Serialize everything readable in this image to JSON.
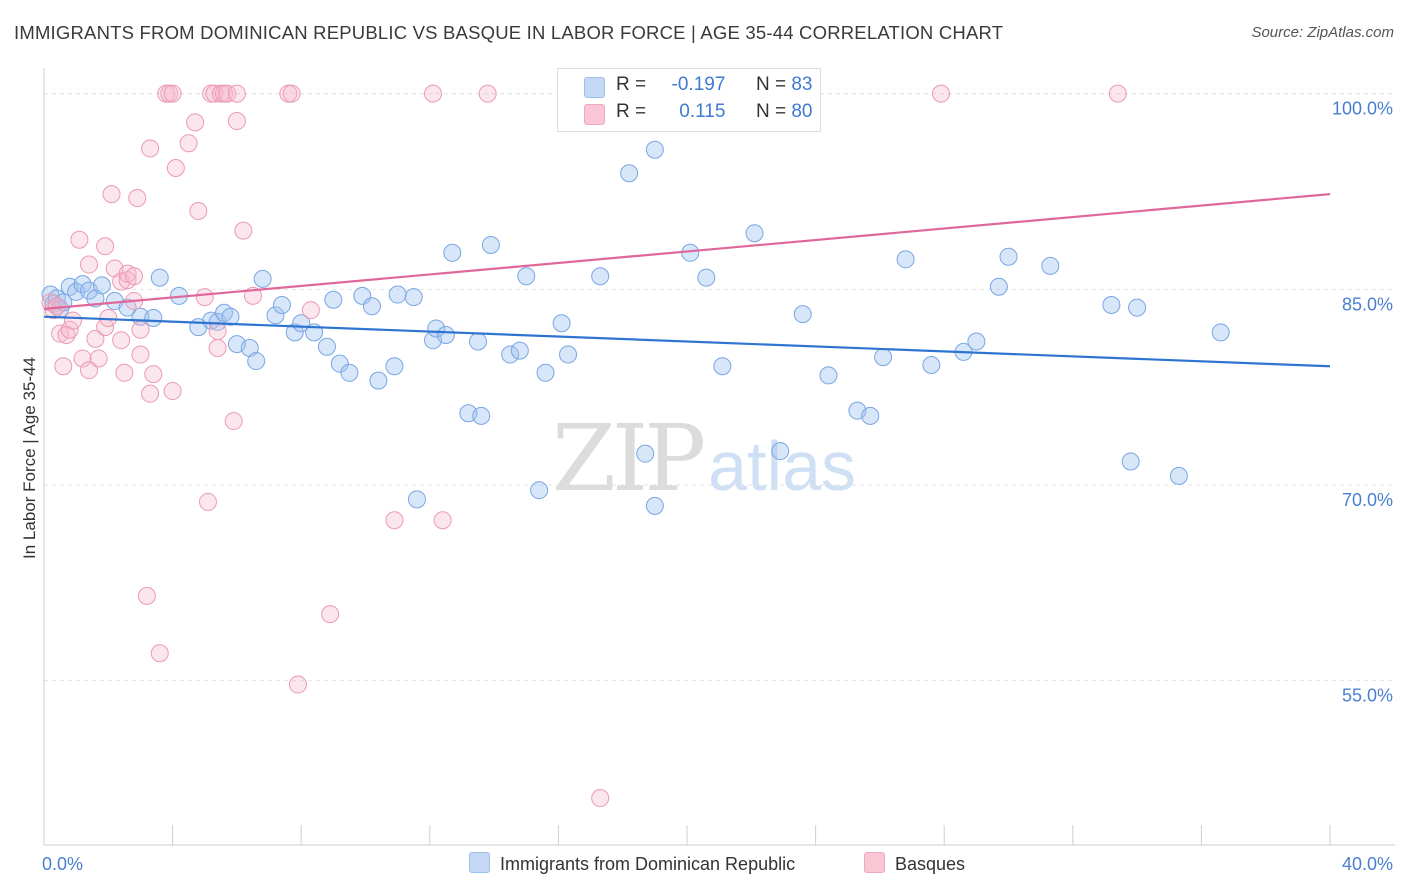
{
  "header": {
    "title": "IMMIGRANTS FROM DOMINICAN REPUBLIC VS BASQUE IN LABOR FORCE | AGE 35-44 CORRELATION CHART",
    "source": "Source: ZipAtlas.com"
  },
  "watermark": {
    "zip": "ZIP",
    "atlas": "atlas"
  },
  "legend": {
    "r_label": "R =",
    "n_label": "N =",
    "series": [
      {
        "name": "Immigrants from Dominican Republic",
        "r": "-0.197",
        "n": "83",
        "color": "#9dbff0",
        "fill": "#c4d8f6"
      },
      {
        "name": "Basques",
        "r": "0.115",
        "n": "80",
        "color": "#f0a8be",
        "fill": "#f8c6d4"
      }
    ]
  },
  "chart_data": {
    "type": "scatter",
    "title": "IMMIGRANTS FROM DOMINICAN REPUBLIC VS BASQUE IN LABOR FORCE | AGE 35-44 CORRELATION CHART",
    "ylabel": "In Labor Force | Age 35-44",
    "xlabel": "",
    "xlim": [
      0,
      40
    ],
    "ylim": [
      42.4,
      101.2
    ],
    "x_tick_labels": [
      "0.0%",
      "40.0%"
    ],
    "y_ticks": [
      55,
      70,
      85,
      100
    ],
    "y_tick_labels": [
      "55.0%",
      "70.0%",
      "85.0%",
      "100.0%"
    ],
    "grid": true,
    "legend_position": "top-center",
    "series": [
      {
        "name": "Immigrants from Dominican Republic",
        "color": "#5b8fd9",
        "points": [
          [
            0.2,
            84.6
          ],
          [
            0.3,
            83.9
          ],
          [
            0.4,
            84.3
          ],
          [
            0.5,
            83.5
          ],
          [
            0.6,
            84.0
          ],
          [
            0.8,
            85.2
          ],
          [
            1.0,
            84.8
          ],
          [
            1.2,
            85.4
          ],
          [
            1.4,
            84.9
          ],
          [
            1.6,
            84.3
          ],
          [
            1.8,
            85.3
          ],
          [
            2.2,
            84.1
          ],
          [
            2.6,
            83.6
          ],
          [
            3.0,
            82.9
          ],
          [
            3.4,
            82.8
          ],
          [
            3.6,
            85.9
          ],
          [
            4.2,
            84.5
          ],
          [
            4.8,
            82.1
          ],
          [
            5.2,
            82.6
          ],
          [
            5.4,
            82.5
          ],
          [
            5.6,
            83.2
          ],
          [
            5.8,
            82.9
          ],
          [
            6.0,
            80.8
          ],
          [
            6.4,
            80.5
          ],
          [
            6.6,
            79.5
          ],
          [
            6.8,
            85.8
          ],
          [
            7.2,
            83.0
          ],
          [
            7.4,
            83.8
          ],
          [
            7.8,
            81.7
          ],
          [
            8.0,
            82.4
          ],
          [
            8.4,
            81.7
          ],
          [
            8.8,
            80.6
          ],
          [
            9.0,
            84.2
          ],
          [
            9.2,
            79.3
          ],
          [
            9.5,
            78.6
          ],
          [
            9.9,
            84.5
          ],
          [
            10.2,
            83.7
          ],
          [
            10.4,
            78.0
          ],
          [
            10.9,
            79.1
          ],
          [
            11.0,
            84.6
          ],
          [
            11.5,
            84.4
          ],
          [
            11.6,
            68.9
          ],
          [
            12.1,
            81.1
          ],
          [
            12.2,
            82.0
          ],
          [
            12.5,
            81.5
          ],
          [
            12.7,
            87.8
          ],
          [
            13.2,
            75.5
          ],
          [
            13.6,
            75.3
          ],
          [
            13.5,
            81.0
          ],
          [
            13.9,
            88.4
          ],
          [
            14.5,
            80.0
          ],
          [
            14.8,
            80.3
          ],
          [
            15.0,
            86.0
          ],
          [
            15.4,
            69.6
          ],
          [
            15.6,
            78.6
          ],
          [
            16.1,
            82.4
          ],
          [
            16.3,
            80.0
          ],
          [
            17.3,
            86.0
          ],
          [
            18.2,
            93.9
          ],
          [
            18.7,
            72.4
          ],
          [
            19.0,
            68.4
          ],
          [
            19.0,
            95.7
          ],
          [
            20.1,
            87.8
          ],
          [
            20.6,
            85.9
          ],
          [
            21.1,
            79.1
          ],
          [
            22.1,
            89.3
          ],
          [
            22.9,
            72.6
          ],
          [
            23.6,
            83.1
          ],
          [
            24.4,
            78.4
          ],
          [
            26.1,
            79.8
          ],
          [
            25.3,
            75.7
          ],
          [
            25.7,
            75.3
          ],
          [
            26.8,
            87.3
          ],
          [
            27.6,
            79.2
          ],
          [
            28.6,
            80.2
          ],
          [
            29.0,
            81.0
          ],
          [
            29.7,
            85.2
          ],
          [
            30.0,
            87.5
          ],
          [
            31.3,
            86.8
          ],
          [
            33.2,
            83.8
          ],
          [
            33.8,
            71.8
          ],
          [
            34.0,
            83.6
          ],
          [
            35.3,
            70.7
          ],
          [
            36.6,
            81.7
          ]
        ],
        "trend": {
          "from": [
            0.0,
            82.9
          ],
          "to": [
            40.0,
            79.1
          ]
        }
      },
      {
        "name": "Basques",
        "color": "#e890aa",
        "points": [
          [
            0.2,
            84.0
          ],
          [
            0.3,
            83.4
          ],
          [
            0.4,
            83.7
          ],
          [
            0.5,
            81.6
          ],
          [
            0.6,
            79.1
          ],
          [
            0.7,
            81.5
          ],
          [
            0.8,
            81.9
          ],
          [
            0.9,
            82.6
          ],
          [
            1.1,
            88.8
          ],
          [
            1.2,
            79.7
          ],
          [
            1.4,
            86.9
          ],
          [
            1.4,
            78.8
          ],
          [
            1.6,
            81.2
          ],
          [
            1.7,
            79.7
          ],
          [
            1.9,
            88.3
          ],
          [
            1.9,
            82.1
          ],
          [
            2.0,
            82.8
          ],
          [
            2.1,
            92.3
          ],
          [
            2.2,
            86.6
          ],
          [
            2.4,
            81.1
          ],
          [
            2.4,
            85.6
          ],
          [
            2.5,
            78.6
          ],
          [
            2.6,
            85.7
          ],
          [
            2.6,
            86.2
          ],
          [
            2.8,
            86.0
          ],
          [
            2.8,
            84.1
          ],
          [
            2.9,
            92.0
          ],
          [
            3.0,
            81.9
          ],
          [
            3.0,
            80.0
          ],
          [
            3.2,
            61.5
          ],
          [
            3.3,
            95.8
          ],
          [
            3.3,
            77.0
          ],
          [
            3.4,
            78.5
          ],
          [
            3.6,
            57.1
          ],
          [
            3.8,
            100.0
          ],
          [
            3.9,
            100.0
          ],
          [
            4.0,
            100.0
          ],
          [
            4.0,
            77.2
          ],
          [
            4.1,
            94.3
          ],
          [
            4.5,
            96.2
          ],
          [
            4.7,
            97.8
          ],
          [
            4.8,
            91.0
          ],
          [
            5.0,
            84.4
          ],
          [
            5.1,
            68.7
          ],
          [
            5.2,
            100.0
          ],
          [
            5.3,
            100.0
          ],
          [
            5.4,
            81.8
          ],
          [
            5.4,
            80.5
          ],
          [
            5.5,
            100.0
          ],
          [
            5.6,
            100.0
          ],
          [
            5.7,
            100.0
          ],
          [
            5.9,
            74.9
          ],
          [
            6.0,
            97.9
          ],
          [
            6.0,
            100.0
          ],
          [
            6.2,
            89.5
          ],
          [
            6.5,
            84.5
          ],
          [
            7.6,
            100.0
          ],
          [
            7.7,
            100.0
          ],
          [
            7.9,
            54.7
          ],
          [
            8.3,
            83.4
          ],
          [
            8.9,
            60.1
          ],
          [
            10.9,
            67.3
          ],
          [
            12.1,
            100.0
          ],
          [
            12.4,
            67.3
          ],
          [
            13.8,
            100.0
          ],
          [
            17.3,
            46.0
          ],
          [
            27.9,
            100.0
          ],
          [
            33.4,
            100.0
          ]
        ],
        "trend": {
          "from": [
            0.0,
            83.5
          ],
          "to": [
            40.0,
            92.3
          ]
        }
      }
    ]
  }
}
